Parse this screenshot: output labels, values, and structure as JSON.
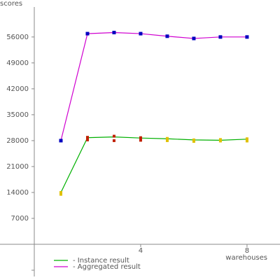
{
  "chart_data": {
    "type": "line",
    "y_label": "scores",
    "x_label": "warehouses",
    "x": [
      1,
      2,
      3,
      4,
      5,
      6,
      7,
      8
    ],
    "series": [
      {
        "name": "- Instance result",
        "color": "#00b000",
        "values": [
          14000,
          28800,
          29000,
          28700,
          28500,
          28200,
          28100,
          28400
        ]
      },
      {
        "name": "- Aggregated result",
        "color": "#d000d0",
        "values": [
          28000,
          56900,
          57200,
          56900,
          56200,
          55600,
          56000,
          56000
        ]
      }
    ],
    "instance_markers": [
      {
        "colors": [
          "#e0c000",
          "#c02000",
          "#c02000",
          "#c02000",
          "#e0c000",
          "#e0c000",
          "#e0c000",
          "#e0c000"
        ],
        "values": [
          14000,
          28900,
          29200,
          28800,
          28600,
          28200,
          28300,
          28500
        ]
      },
      {
        "colors": [
          "#e0c000",
          "#c02000",
          "#c02000",
          "#c02000",
          "#e0c000",
          "#e0c000",
          "#e0c000",
          "#e0c000"
        ],
        "values": [
          13500,
          28200,
          28000,
          28100,
          28000,
          27800,
          27900,
          27900
        ]
      }
    ],
    "aggregated_marker_color": "#0000c0",
    "xlim": [
      -1.29,
      9.24
    ],
    "ylim": [
      -8700,
      64100
    ],
    "xticks": [
      4,
      8
    ],
    "yticks": [
      7000,
      14000,
      21000,
      28000,
      35000,
      42000,
      49000,
      56000
    ]
  }
}
